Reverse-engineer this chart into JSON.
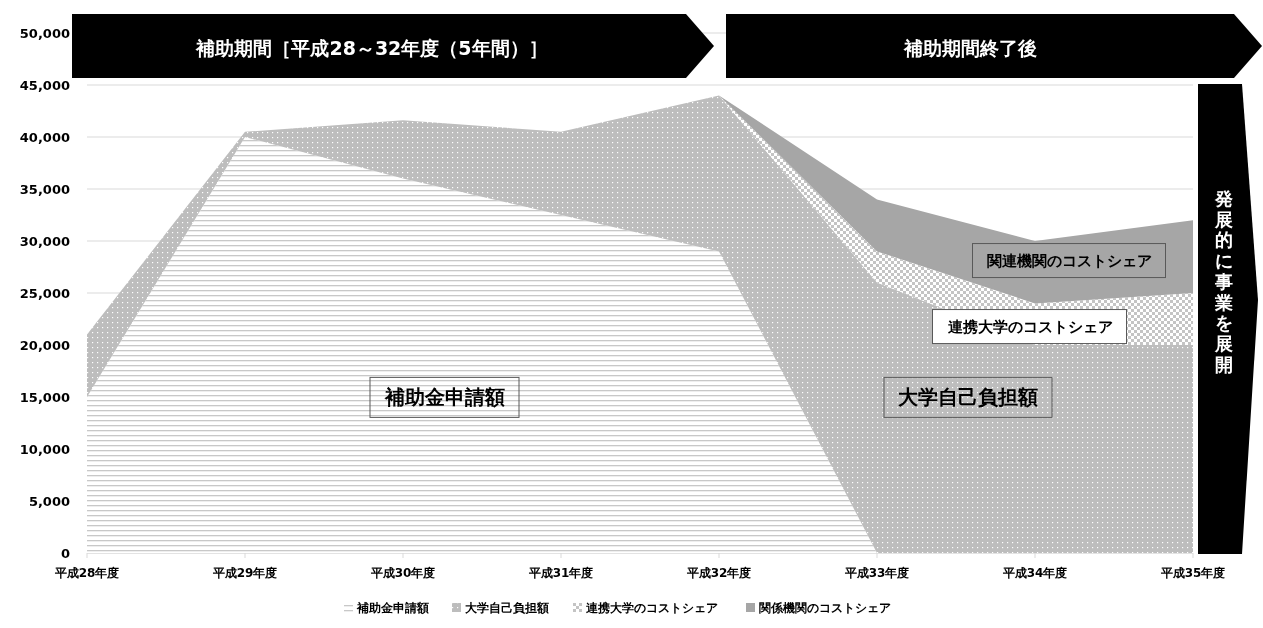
{
  "chart_data": {
    "type": "area",
    "stacked": true,
    "categories": [
      "平成28年度",
      "平成29年度",
      "平成30年度",
      "平成31年度",
      "平成32年度",
      "平成33年度",
      "平成34年度",
      "平成35年度"
    ],
    "series": [
      {
        "name": "補助金申請額",
        "color": "#c8c8c8",
        "values": [
          15000,
          40000,
          36000,
          32500,
          29000,
          0,
          0,
          0
        ]
      },
      {
        "name": "大学自己負担額",
        "color": "#bdbdbd",
        "values": [
          6000,
          500,
          5600,
          8000,
          15000,
          26000,
          20000,
          20000
        ]
      },
      {
        "name": "連携大学のコストシェア",
        "color": "#c4c4c4",
        "values": [
          0,
          0,
          0,
          0,
          0,
          3000,
          4000,
          5000
        ]
      },
      {
        "name": "関係機関のコストシェア",
        "color": "#a6a6a6",
        "values": [
          0,
          0,
          0,
          0,
          0,
          5000,
          6000,
          7000
        ]
      }
    ],
    "ylim": [
      0,
      50000
    ],
    "yticks": [
      {
        "value": 0,
        "label": "0"
      },
      {
        "value": 5000,
        "label": "5,000"
      },
      {
        "value": 10000,
        "label": "10,000"
      },
      {
        "value": 15000,
        "label": "15,000"
      },
      {
        "value": 20000,
        "label": "20,000"
      },
      {
        "value": 25000,
        "label": "25,000"
      },
      {
        "value": 30000,
        "label": "30,000"
      },
      {
        "value": 35000,
        "label": "35,000"
      },
      {
        "value": 40000,
        "label": "40,000"
      },
      {
        "value": 45000,
        "label": "45,000"
      },
      {
        "value": 50000,
        "label": "50,000"
      }
    ],
    "grid": "y",
    "legend": "bottom",
    "annotations": [
      "補助期間［平成28～32年度（5年間）］",
      "補助期間終了後",
      "発展的に事業を展開",
      "補助金申請額",
      "大学自己負担額",
      "連携大学のコストシェア",
      "関連機関のコストシェア"
    ]
  }
}
